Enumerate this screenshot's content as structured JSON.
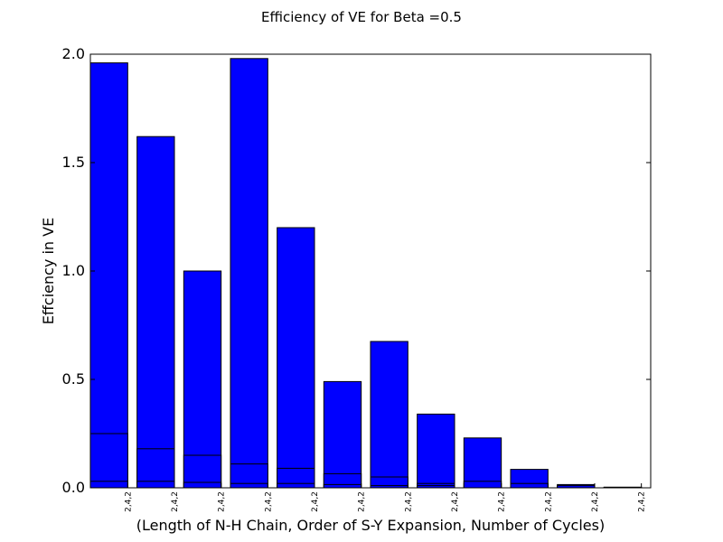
{
  "chart_data": {
    "type": "bar",
    "title": "Efficiency of VE for Beta =0.5",
    "xlabel": "(Length of N-H Chain, Order of S-Y Expansion, Number of Cycles)",
    "ylabel": "Effciency in VE",
    "ylim": [
      0,
      2.0
    ],
    "yticks": [
      "0.0",
      "0.5",
      "1.0",
      "1.5",
      "2.0"
    ],
    "categories": [
      "2,4,2",
      "2,4,2",
      "2,4,2",
      "2,4,2",
      "2,4,2",
      "2,4,2",
      "2,4,2",
      "2,4,2",
      "2,4,2",
      "2,4,2",
      "2,4,2",
      "2,4,2"
    ],
    "series": [
      {
        "values": [
          1.96,
          1.62,
          1.0,
          1.98,
          1.2,
          0.49,
          0.675,
          0.34,
          0.23,
          0.085,
          0.015,
          0.003
        ]
      },
      {
        "values": [
          0.25,
          0.18,
          0.15,
          0.11,
          0.09,
          0.065,
          0.05,
          0.02,
          0.02,
          0.015,
          0.008,
          0.002
        ]
      },
      {
        "values": [
          0.03,
          0.03,
          0.025,
          0.02,
          0.02,
          0.015,
          0.01,
          0.01,
          0.03,
          0.02,
          0.01,
          0.002
        ]
      }
    ],
    "colors": {
      "bar": "#0000ff",
      "edge": "#000000"
    },
    "grid": false
  }
}
